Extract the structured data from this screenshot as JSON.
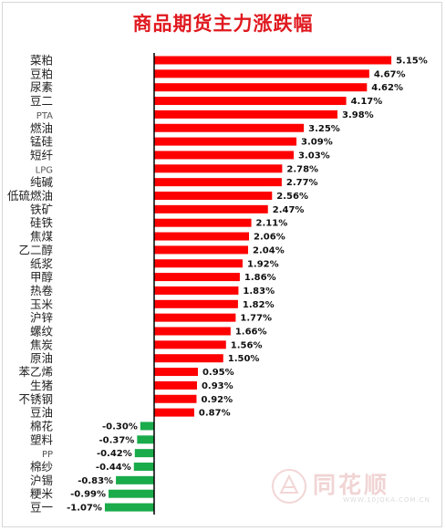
{
  "chart_data": {
    "type": "bar",
    "orientation": "horizontal",
    "title": "商品期货主力涨跌幅",
    "categories": [
      "菜粕",
      "豆粕",
      "尿素",
      "豆二",
      "PTA",
      "燃油",
      "锰硅",
      "短纤",
      "LPG",
      "纯碱",
      "低硫燃油",
      "铁矿",
      "硅铁",
      "焦煤",
      "乙二醇",
      "纸浆",
      "甲醇",
      "热卷",
      "玉米",
      "沪锌",
      "螺纹",
      "焦炭",
      "原油",
      "苯乙烯",
      "生猪",
      "不锈钢",
      "豆油",
      "棉花",
      "塑料",
      "PP",
      "棉纱",
      "沪锡",
      "粳米",
      "豆一"
    ],
    "values": [
      5.15,
      4.67,
      4.62,
      4.17,
      3.98,
      3.25,
      3.09,
      3.03,
      2.78,
      2.77,
      2.56,
      2.47,
      2.11,
      2.06,
      2.04,
      1.92,
      1.86,
      1.83,
      1.82,
      1.77,
      1.66,
      1.56,
      1.5,
      0.95,
      0.93,
      0.92,
      0.87,
      -0.3,
      -0.37,
      -0.42,
      -0.44,
      -0.83,
      -0.99,
      -1.07
    ],
    "value_labels": [
      "5.15%",
      "4.67%",
      "4.62%",
      "4.17%",
      "3.98%",
      "3.25%",
      "3.09%",
      "3.03%",
      "2.78%",
      "2.77%",
      "2.56%",
      "2.47%",
      "2.11%",
      "2.06%",
      "2.04%",
      "1.92%",
      "1.86%",
      "1.83%",
      "1.82%",
      "1.77%",
      "1.66%",
      "1.56%",
      "1.50%",
      "0.95%",
      "0.93%",
      "0.92%",
      "0.87%",
      "-0.30%",
      "-0.37%",
      "-0.42%",
      "-0.44%",
      "-0.83%",
      "-0.99%",
      "-1.07%"
    ],
    "unit": "%",
    "colors": {
      "positive": "#ff0000",
      "negative": "#1aab4b",
      "title": "#e0191f",
      "axis": "#000000"
    },
    "grid": false,
    "legend": "none"
  },
  "watermark": {
    "text": "同花顺",
    "subtext": "WWW.10JQKA.COM.CN"
  }
}
